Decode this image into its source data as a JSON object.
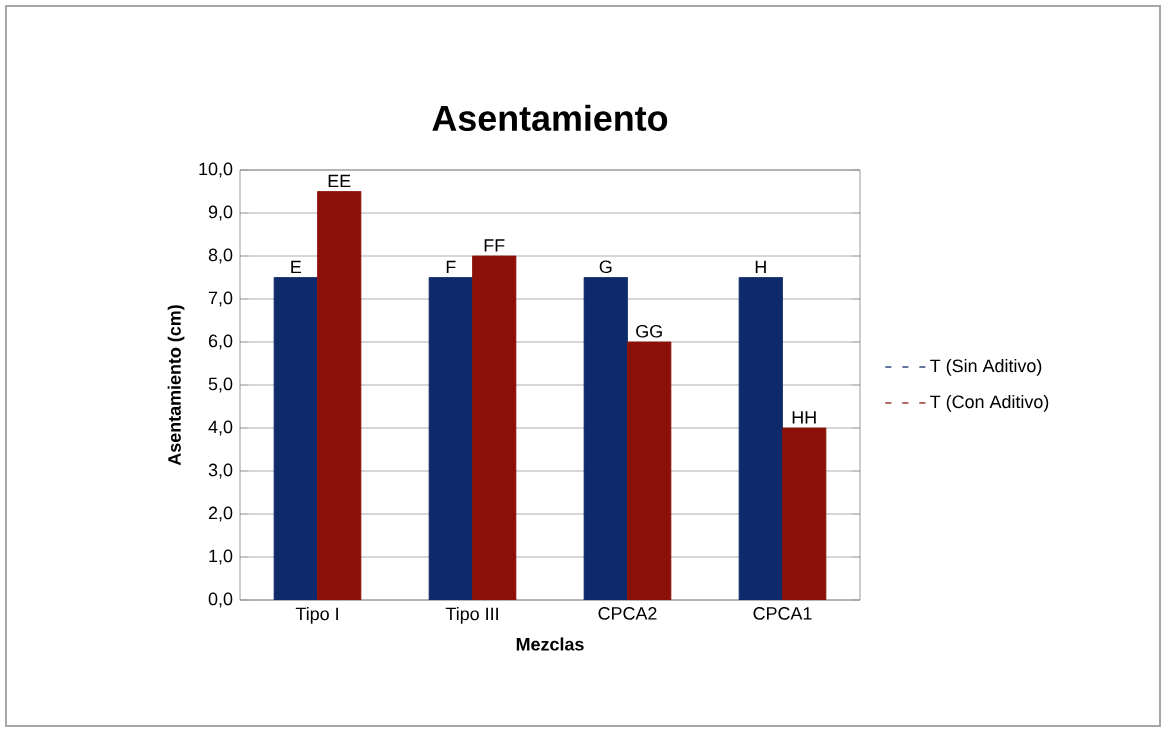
{
  "chart_data": {
    "type": "bar",
    "title": "Asentamiento",
    "xlabel": "Mezclas",
    "ylabel": "Asentamiento (cm)",
    "categories": [
      "Tipo I",
      "Tipo III",
      "CPCA2",
      "CPCA1"
    ],
    "series": [
      {
        "name": "T (Sin Aditivo)",
        "color": "#0e2a6b",
        "values": [
          7.5,
          7.5,
          7.5,
          7.5
        ],
        "value_labels": [
          "E",
          "F",
          "G",
          "H"
        ]
      },
      {
        "name": "T (Con Aditivo)",
        "color": "#8b1108",
        "values": [
          9.5,
          8.0,
          6.0,
          4.0
        ],
        "value_labels": [
          "EE",
          "FF",
          "GG",
          "HH"
        ]
      }
    ],
    "ylim": [
      0,
      10
    ],
    "yticks": [
      {
        "value": 0,
        "label": "0,0"
      },
      {
        "value": 1,
        "label": "1,0"
      },
      {
        "value": 2,
        "label": "2,0"
      },
      {
        "value": 3,
        "label": "3,0"
      },
      {
        "value": 4,
        "label": "4,0"
      },
      {
        "value": 5,
        "label": "5,0"
      },
      {
        "value": 6,
        "label": "6,0"
      },
      {
        "value": 7,
        "label": "7,0"
      },
      {
        "value": 8,
        "label": "8,0"
      },
      {
        "value": 9,
        "label": "9,0"
      },
      {
        "value": 10,
        "label": "10,0"
      }
    ],
    "grid": "y",
    "legend": "right"
  }
}
